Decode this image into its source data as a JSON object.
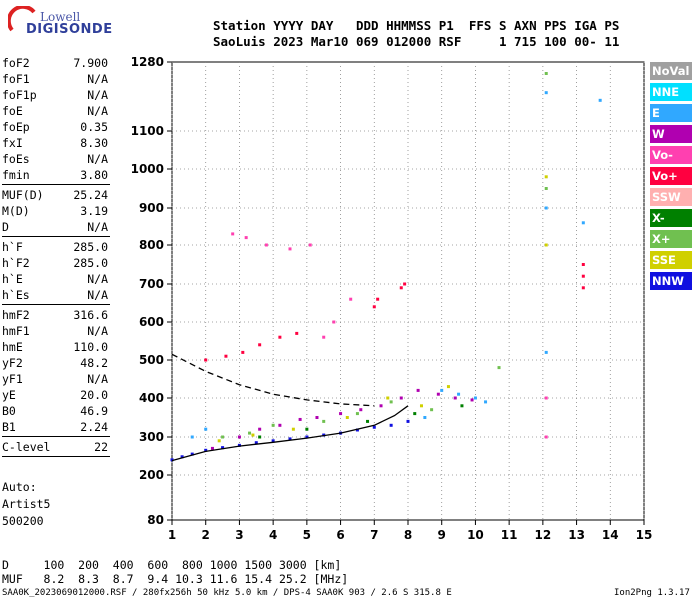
{
  "logo": {
    "top_text": "Lowell",
    "bottom_text": "DIGISONDE"
  },
  "header": {
    "line1": "Station YYYY DAY   DDD HHMMSS P1  FFS S AXN PPS IGA PS",
    "line2": "SaoLuis 2023 Mar10 069 012000 RSF     1 715 100 00- 11"
  },
  "params": [
    {
      "name": "foF2",
      "value": "7.900"
    },
    {
      "name": "foF1",
      "value": "N/A"
    },
    {
      "name": "foF1p",
      "value": "N/A"
    },
    {
      "name": "foE",
      "value": "N/A"
    },
    {
      "name": "foEp",
      "value": "0.35"
    },
    {
      "name": "fxI",
      "value": "8.30"
    },
    {
      "name": "foEs",
      "value": "N/A"
    },
    {
      "name": "fmin",
      "value": "3.80"
    },
    {
      "name": "MUF(D)",
      "value": "25.24"
    },
    {
      "name": "M(D)",
      "value": "3.19"
    },
    {
      "name": "D",
      "value": "N/A"
    },
    {
      "name": "h`F",
      "value": "285.0"
    },
    {
      "name": "h`F2",
      "value": "285.0"
    },
    {
      "name": "h`E",
      "value": "N/A"
    },
    {
      "name": "h`Es",
      "value": "N/A"
    },
    {
      "name": "hmF2",
      "value": "316.6"
    },
    {
      "name": "hmF1",
      "value": "N/A"
    },
    {
      "name": "hmE",
      "value": "110.0"
    },
    {
      "name": "yF2",
      "value": "48.2"
    },
    {
      "name": "yF1",
      "value": "N/A"
    },
    {
      "name": "yE",
      "value": "20.0"
    },
    {
      "name": "B0",
      "value": "46.9"
    },
    {
      "name": "B1",
      "value": "2.24"
    },
    {
      "name": "C-level",
      "value": "22"
    }
  ],
  "auto": {
    "line1": "Auto:",
    "line2": "Artist5",
    "line3": "500200"
  },
  "legend": [
    {
      "label": "NoVal",
      "color": "#a0a0a0"
    },
    {
      "label": "NNE",
      "color": "#00e0ff"
    },
    {
      "label": "E",
      "color": "#30a8ff"
    },
    {
      "label": "W",
      "color": "#b000b0"
    },
    {
      "label": "Vo-",
      "color": "#ff40b0"
    },
    {
      "label": "Vo+",
      "color": "#ff0040"
    },
    {
      "label": "SSW",
      "color": "#ffb0b0"
    },
    {
      "label": "X-",
      "color": "#008000"
    },
    {
      "label": "X+",
      "color": "#70c050"
    },
    {
      "label": "SSE",
      "color": "#d0d000"
    },
    {
      "label": "NNW",
      "color": "#1010e0"
    }
  ],
  "footer": {
    "d_line": "D     100  200  400  600  800 1000 1500 3000 [km]",
    "muf_line": "MUF   8.2  8.3  8.7  9.4 10.3 11.6 15.4 25.2 [MHz]",
    "footnote": "SAA0K_2023069012000.RSF / 280fx256h 50 kHz 5.0 km / DPS-4 SAA0K 903 / 2.6 S 315.8 E",
    "version": "Ion2Png 1.3.17"
  },
  "chart_data": {
    "type": "scatter",
    "title": "",
    "xlabel": "",
    "ylabel": "",
    "xlim": [
      1,
      15
    ],
    "ylim": [
      80,
      1280
    ],
    "x_ticks": [
      1,
      2,
      3,
      4,
      5,
      6,
      7,
      8,
      9,
      10,
      11,
      12,
      13,
      14,
      15
    ],
    "y_ticks": [
      80,
      200,
      300,
      400,
      500,
      600,
      700,
      800,
      900,
      1000,
      1100,
      1280
    ],
    "grid": true,
    "legend_placement": "right",
    "series": [
      {
        "color": "#1010e0",
        "points": [
          [
            1.0,
            240
          ],
          [
            1.3,
            248
          ],
          [
            1.6,
            255
          ],
          [
            2.0,
            265
          ],
          [
            2.5,
            272
          ],
          [
            3.0,
            278
          ],
          [
            3.5,
            285
          ],
          [
            4.0,
            290
          ],
          [
            4.5,
            295
          ],
          [
            5.0,
            300
          ],
          [
            5.5,
            305
          ],
          [
            6.0,
            310
          ],
          [
            6.5,
            318
          ],
          [
            7.0,
            325
          ],
          [
            7.5,
            330
          ],
          [
            8.0,
            340
          ]
        ]
      },
      {
        "color": "#b000b0",
        "points": [
          [
            2.2,
            270
          ],
          [
            3.0,
            300
          ],
          [
            3.6,
            320
          ],
          [
            4.2,
            330
          ],
          [
            4.8,
            345
          ],
          [
            5.3,
            350
          ],
          [
            6.0,
            360
          ],
          [
            6.6,
            370
          ],
          [
            7.2,
            380
          ],
          [
            7.8,
            400
          ],
          [
            8.3,
            420
          ],
          [
            8.9,
            410
          ],
          [
            9.4,
            400
          ],
          [
            9.9,
            395
          ]
        ]
      },
      {
        "color": "#ff0040",
        "points": [
          [
            2.0,
            500
          ],
          [
            2.6,
            510
          ],
          [
            3.1,
            520
          ],
          [
            3.6,
            540
          ],
          [
            4.2,
            560
          ],
          [
            4.7,
            570
          ],
          [
            7.0,
            640
          ],
          [
            7.1,
            660
          ],
          [
            7.8,
            690
          ],
          [
            7.9,
            700
          ],
          [
            13.2,
            690
          ],
          [
            13.2,
            720
          ],
          [
            13.2,
            750
          ]
        ]
      },
      {
        "color": "#30a8ff",
        "points": [
          [
            1.6,
            300
          ],
          [
            2.0,
            320
          ],
          [
            8.5,
            350
          ],
          [
            9.0,
            420
          ],
          [
            9.5,
            410
          ],
          [
            10.0,
            400
          ],
          [
            10.3,
            390
          ],
          [
            12.1,
            520
          ],
          [
            12.1,
            900
          ],
          [
            12.1,
            1200
          ],
          [
            13.2,
            860
          ],
          [
            13.7,
            1180
          ]
        ]
      },
      {
        "color": "#70c050",
        "points": [
          [
            2.5,
            300
          ],
          [
            3.3,
            310
          ],
          [
            4.0,
            330
          ],
          [
            5.5,
            340
          ],
          [
            6.5,
            360
          ],
          [
            7.5,
            390
          ],
          [
            8.7,
            370
          ],
          [
            10.7,
            480
          ],
          [
            12.1,
            950
          ],
          [
            12.1,
            1250
          ]
        ]
      },
      {
        "color": "#d0d000",
        "points": [
          [
            2.4,
            290
          ],
          [
            3.4,
            305
          ],
          [
            4.6,
            320
          ],
          [
            6.2,
            350
          ],
          [
            7.4,
            400
          ],
          [
            8.4,
            380
          ],
          [
            9.2,
            430
          ],
          [
            12.1,
            980
          ],
          [
            12.1,
            800
          ]
        ]
      },
      {
        "color": "#ff40b0",
        "points": [
          [
            2.8,
            830
          ],
          [
            3.2,
            820
          ],
          [
            3.8,
            800
          ],
          [
            4.5,
            790
          ],
          [
            5.1,
            800
          ],
          [
            5.5,
            560
          ],
          [
            5.8,
            600
          ],
          [
            6.3,
            660
          ],
          [
            12.1,
            300
          ],
          [
            12.1,
            400
          ]
        ]
      },
      {
        "color": "#008000",
        "points": [
          [
            3.6,
            300
          ],
          [
            5.0,
            320
          ],
          [
            6.8,
            340
          ],
          [
            8.2,
            360
          ],
          [
            9.6,
            380
          ]
        ]
      }
    ],
    "traces": [
      {
        "style": "dashed",
        "points": [
          [
            1.0,
            515
          ],
          [
            2.0,
            470
          ],
          [
            3.0,
            435
          ],
          [
            4.0,
            410
          ],
          [
            5.0,
            395
          ],
          [
            6.0,
            385
          ],
          [
            7.0,
            380
          ]
        ]
      },
      {
        "style": "solid",
        "points": [
          [
            1.0,
            238
          ],
          [
            2.0,
            262
          ],
          [
            3.0,
            276
          ],
          [
            4.0,
            286
          ],
          [
            5.0,
            297
          ],
          [
            6.0,
            310
          ],
          [
            7.0,
            330
          ],
          [
            7.6,
            355
          ],
          [
            8.0,
            380
          ]
        ]
      }
    ]
  }
}
